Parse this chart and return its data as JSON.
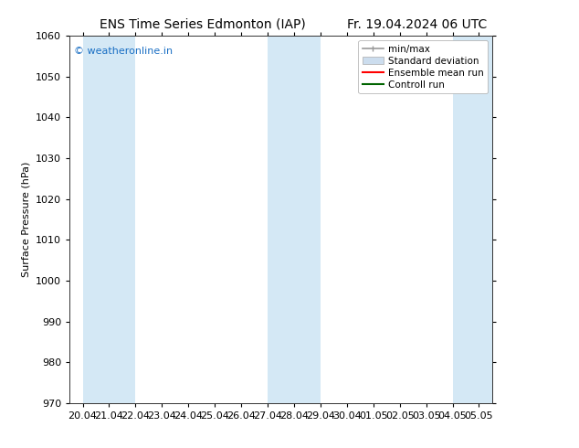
{
  "title_left": "ENS Time Series Edmonton (IAP)",
  "title_right": "Fr. 19.04.2024 06 UTC",
  "ylabel": "Surface Pressure (hPa)",
  "ylim": [
    970,
    1060
  ],
  "yticks": [
    970,
    980,
    990,
    1000,
    1010,
    1020,
    1030,
    1040,
    1050,
    1060
  ],
  "xtick_labels": [
    "20.04",
    "21.04",
    "22.04",
    "23.04",
    "24.04",
    "25.04",
    "26.04",
    "27.04",
    "28.04",
    "29.04",
    "30.04",
    "01.05",
    "02.05",
    "03.05",
    "04.05",
    "05.05"
  ],
  "band_ranges": [
    [
      0.0,
      1.0
    ],
    [
      1.0,
      2.0
    ],
    [
      7.0,
      8.0
    ],
    [
      8.0,
      9.0
    ],
    [
      14.0,
      15.5
    ]
  ],
  "band_color": "#d4e8f5",
  "watermark_text": "© weatheronline.in",
  "watermark_color": "#1a6fc4",
  "legend_entries": [
    "min/max",
    "Standard deviation",
    "Ensemble mean run",
    "Controll run"
  ],
  "legend_line_colors": [
    "#999999",
    "#bbbbbb",
    "#ff0000",
    "#006400"
  ],
  "background_color": "#ffffff",
  "title_fontsize": 10,
  "axis_label_fontsize": 8,
  "tick_fontsize": 8,
  "legend_fontsize": 7.5
}
